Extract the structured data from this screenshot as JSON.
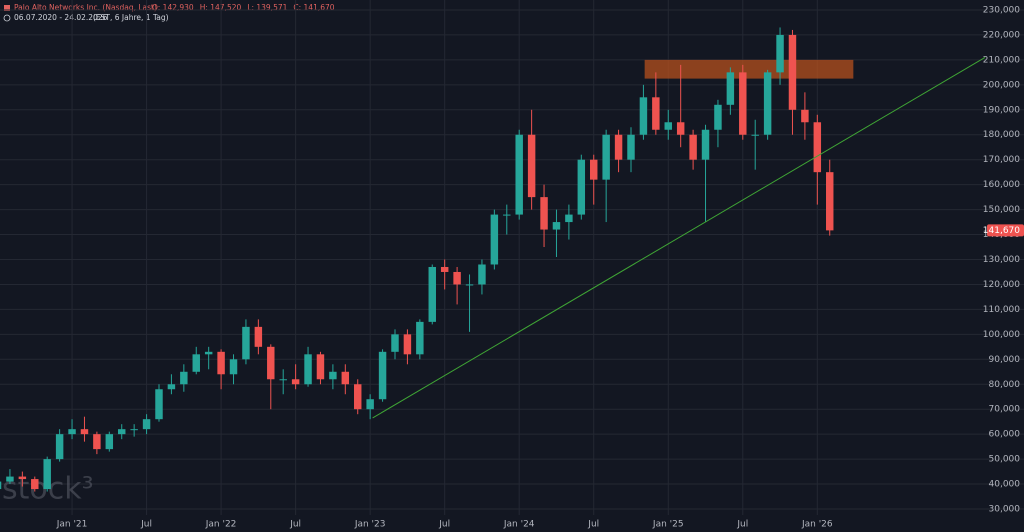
{
  "chart_data": {
    "type": "candlestick",
    "title": "Palo Alto Networks Inc. (Nasdaq, Last)",
    "ohlc_text": [
      "O: 142,930",
      "H: 147,520",
      "L: 139,571",
      "C: 141,670"
    ],
    "subtitle": "06.07.2020 - 24.02.2026",
    "subtitle_note": "(EST, 6 Jahre, 1 Tag)",
    "watermark": "stock³",
    "x": [
      0,
      1,
      2,
      3,
      4,
      5,
      6,
      7,
      8,
      9,
      10,
      11,
      12,
      13,
      14,
      15,
      16,
      17,
      18,
      19,
      20,
      21,
      22,
      23,
      24,
      25,
      26,
      27,
      28,
      29,
      30,
      31,
      32,
      33,
      34,
      35,
      36,
      37,
      38,
      39,
      40,
      41,
      42,
      43,
      44,
      45,
      46,
      47,
      48,
      49,
      50,
      51,
      52,
      53,
      54,
      55,
      56,
      57,
      58,
      59,
      60,
      61,
      62,
      63,
      64,
      65,
      66,
      67
    ],
    "open": [
      38000,
      41000,
      43000,
      42000,
      38000,
      50000,
      60000,
      62000,
      60000,
      54000,
      60000,
      62000,
      62000,
      66000,
      78000,
      80000,
      85000,
      92000,
      93000,
      84000,
      90000,
      103000,
      95000,
      82000,
      82000,
      80000,
      92000,
      82000,
      85000,
      80000,
      70000,
      74000,
      93000,
      100000,
      92000,
      105000,
      127000,
      125000,
      120000,
      120000,
      128000,
      148000,
      148000,
      180000,
      155000,
      142000,
      145000,
      148000,
      170000,
      162000,
      180000,
      170000,
      180000,
      195000,
      182000,
      185000,
      180000,
      170000,
      182000,
      192000,
      205000,
      180000,
      180000,
      205000,
      220000,
      190000,
      185000,
      165000
    ],
    "high": [
      43000,
      46000,
      45000,
      43000,
      51000,
      62000,
      66000,
      67000,
      61000,
      61000,
      64000,
      64000,
      68000,
      80000,
      84000,
      88000,
      95000,
      95000,
      94000,
      92000,
      106000,
      106000,
      96000,
      86000,
      88000,
      95000,
      93000,
      88000,
      88000,
      82000,
      76000,
      94000,
      102000,
      102000,
      106000,
      128000,
      130000,
      127000,
      124000,
      130000,
      150000,
      152000,
      182000,
      190000,
      160000,
      150000,
      152000,
      172000,
      172000,
      182000,
      182000,
      183000,
      200000,
      205000,
      190000,
      208000,
      182000,
      184000,
      194000,
      207000,
      208000,
      186000,
      206000,
      223000,
      222000,
      197000,
      188000,
      170000
    ],
    "low": [
      36000,
      40000,
      39000,
      37000,
      37000,
      49000,
      58000,
      57000,
      52000,
      53000,
      58000,
      59000,
      60000,
      65000,
      76000,
      77000,
      84000,
      86000,
      78000,
      80000,
      88000,
      92000,
      70000,
      76000,
      78000,
      79000,
      80000,
      78000,
      76000,
      68000,
      66000,
      73000,
      90000,
      88000,
      90000,
      104000,
      118000,
      112000,
      101000,
      116000,
      126000,
      140000,
      146000,
      150000,
      135000,
      131000,
      138000,
      146000,
      152000,
      145000,
      165000,
      165000,
      178000,
      180000,
      178000,
      175000,
      166000,
      145000,
      175000,
      188000,
      178000,
      166000,
      178000,
      200000,
      180000,
      178000,
      152000,
      139571
    ],
    "close": [
      41000,
      43000,
      42000,
      38000,
      50000,
      60000,
      62000,
      60000,
      54000,
      60000,
      62000,
      62000,
      66000,
      78000,
      80000,
      85000,
      92000,
      93000,
      84000,
      90000,
      103000,
      95000,
      82000,
      82000,
      80000,
      92000,
      82000,
      85000,
      80000,
      70000,
      74000,
      93000,
      100000,
      92000,
      105000,
      127000,
      125000,
      120000,
      120000,
      128000,
      148000,
      148000,
      180000,
      155000,
      142000,
      145000,
      148000,
      170000,
      162000,
      180000,
      170000,
      180000,
      195000,
      182000,
      185000,
      180000,
      170000,
      182000,
      192000,
      205000,
      180000,
      180000,
      205000,
      220000,
      190000,
      185000,
      165000,
      141670
    ],
    "up_color": "#26a69a",
    "down_color": "#ef5350",
    "xlim": [
      0.2,
      79.5
    ],
    "xticks": [
      {
        "value": 6,
        "label": "Jan '21"
      },
      {
        "value": 12,
        "label": "Jul"
      },
      {
        "value": 18,
        "label": "Jan '22"
      },
      {
        "value": 24,
        "label": "Jul"
      },
      {
        "value": 30,
        "label": "Jan '23"
      },
      {
        "value": 36,
        "label": "Jul"
      },
      {
        "value": 42,
        "label": "Jan '24"
      },
      {
        "value": 48,
        "label": "Jul"
      },
      {
        "value": 54,
        "label": "Jan '25"
      },
      {
        "value": 60,
        "label": "Jul"
      },
      {
        "value": 66,
        "label": "Jan '26"
      }
    ],
    "ylim": [
      27600,
      234000
    ],
    "yticks": [
      {
        "value": 30000,
        "label": "30,000"
      },
      {
        "value": 40000,
        "label": "40,000"
      },
      {
        "value": 50000,
        "label": "50,000"
      },
      {
        "value": 60000,
        "label": "60,000"
      },
      {
        "value": 70000,
        "label": "70,000"
      },
      {
        "value": 80000,
        "label": "80,000"
      },
      {
        "value": 90000,
        "label": "90,000"
      },
      {
        "value": 100000,
        "label": "100,000"
      },
      {
        "value": 110000,
        "label": "110,000"
      },
      {
        "value": 120000,
        "label": "120,000"
      },
      {
        "value": 130000,
        "label": "130,000"
      },
      {
        "value": 140000,
        "label": "140,000"
      },
      {
        "value": 150000,
        "label": "150,000"
      },
      {
        "value": 160000,
        "label": "160,000"
      },
      {
        "value": 170000,
        "label": "170,000"
      },
      {
        "value": 180000,
        "label": "180,000"
      },
      {
        "value": 190000,
        "label": "190,000"
      },
      {
        "value": 200000,
        "label": "200,000"
      },
      {
        "value": 210000,
        "label": "210,000"
      },
      {
        "value": 220000,
        "label": "220,000"
      },
      {
        "value": 230000,
        "label": "230,000"
      }
    ],
    "grid": true,
    "last_price": {
      "value": 141670,
      "label": "141,670"
    },
    "trendline": {
      "x": [
        30.2,
        79.5
      ],
      "y": [
        66500,
        211000
      ],
      "color": "#3fa535"
    },
    "zone": {
      "x": [
        52.1,
        68.9
      ],
      "y": [
        202500,
        210000
      ],
      "color": "#b5501e"
    }
  }
}
